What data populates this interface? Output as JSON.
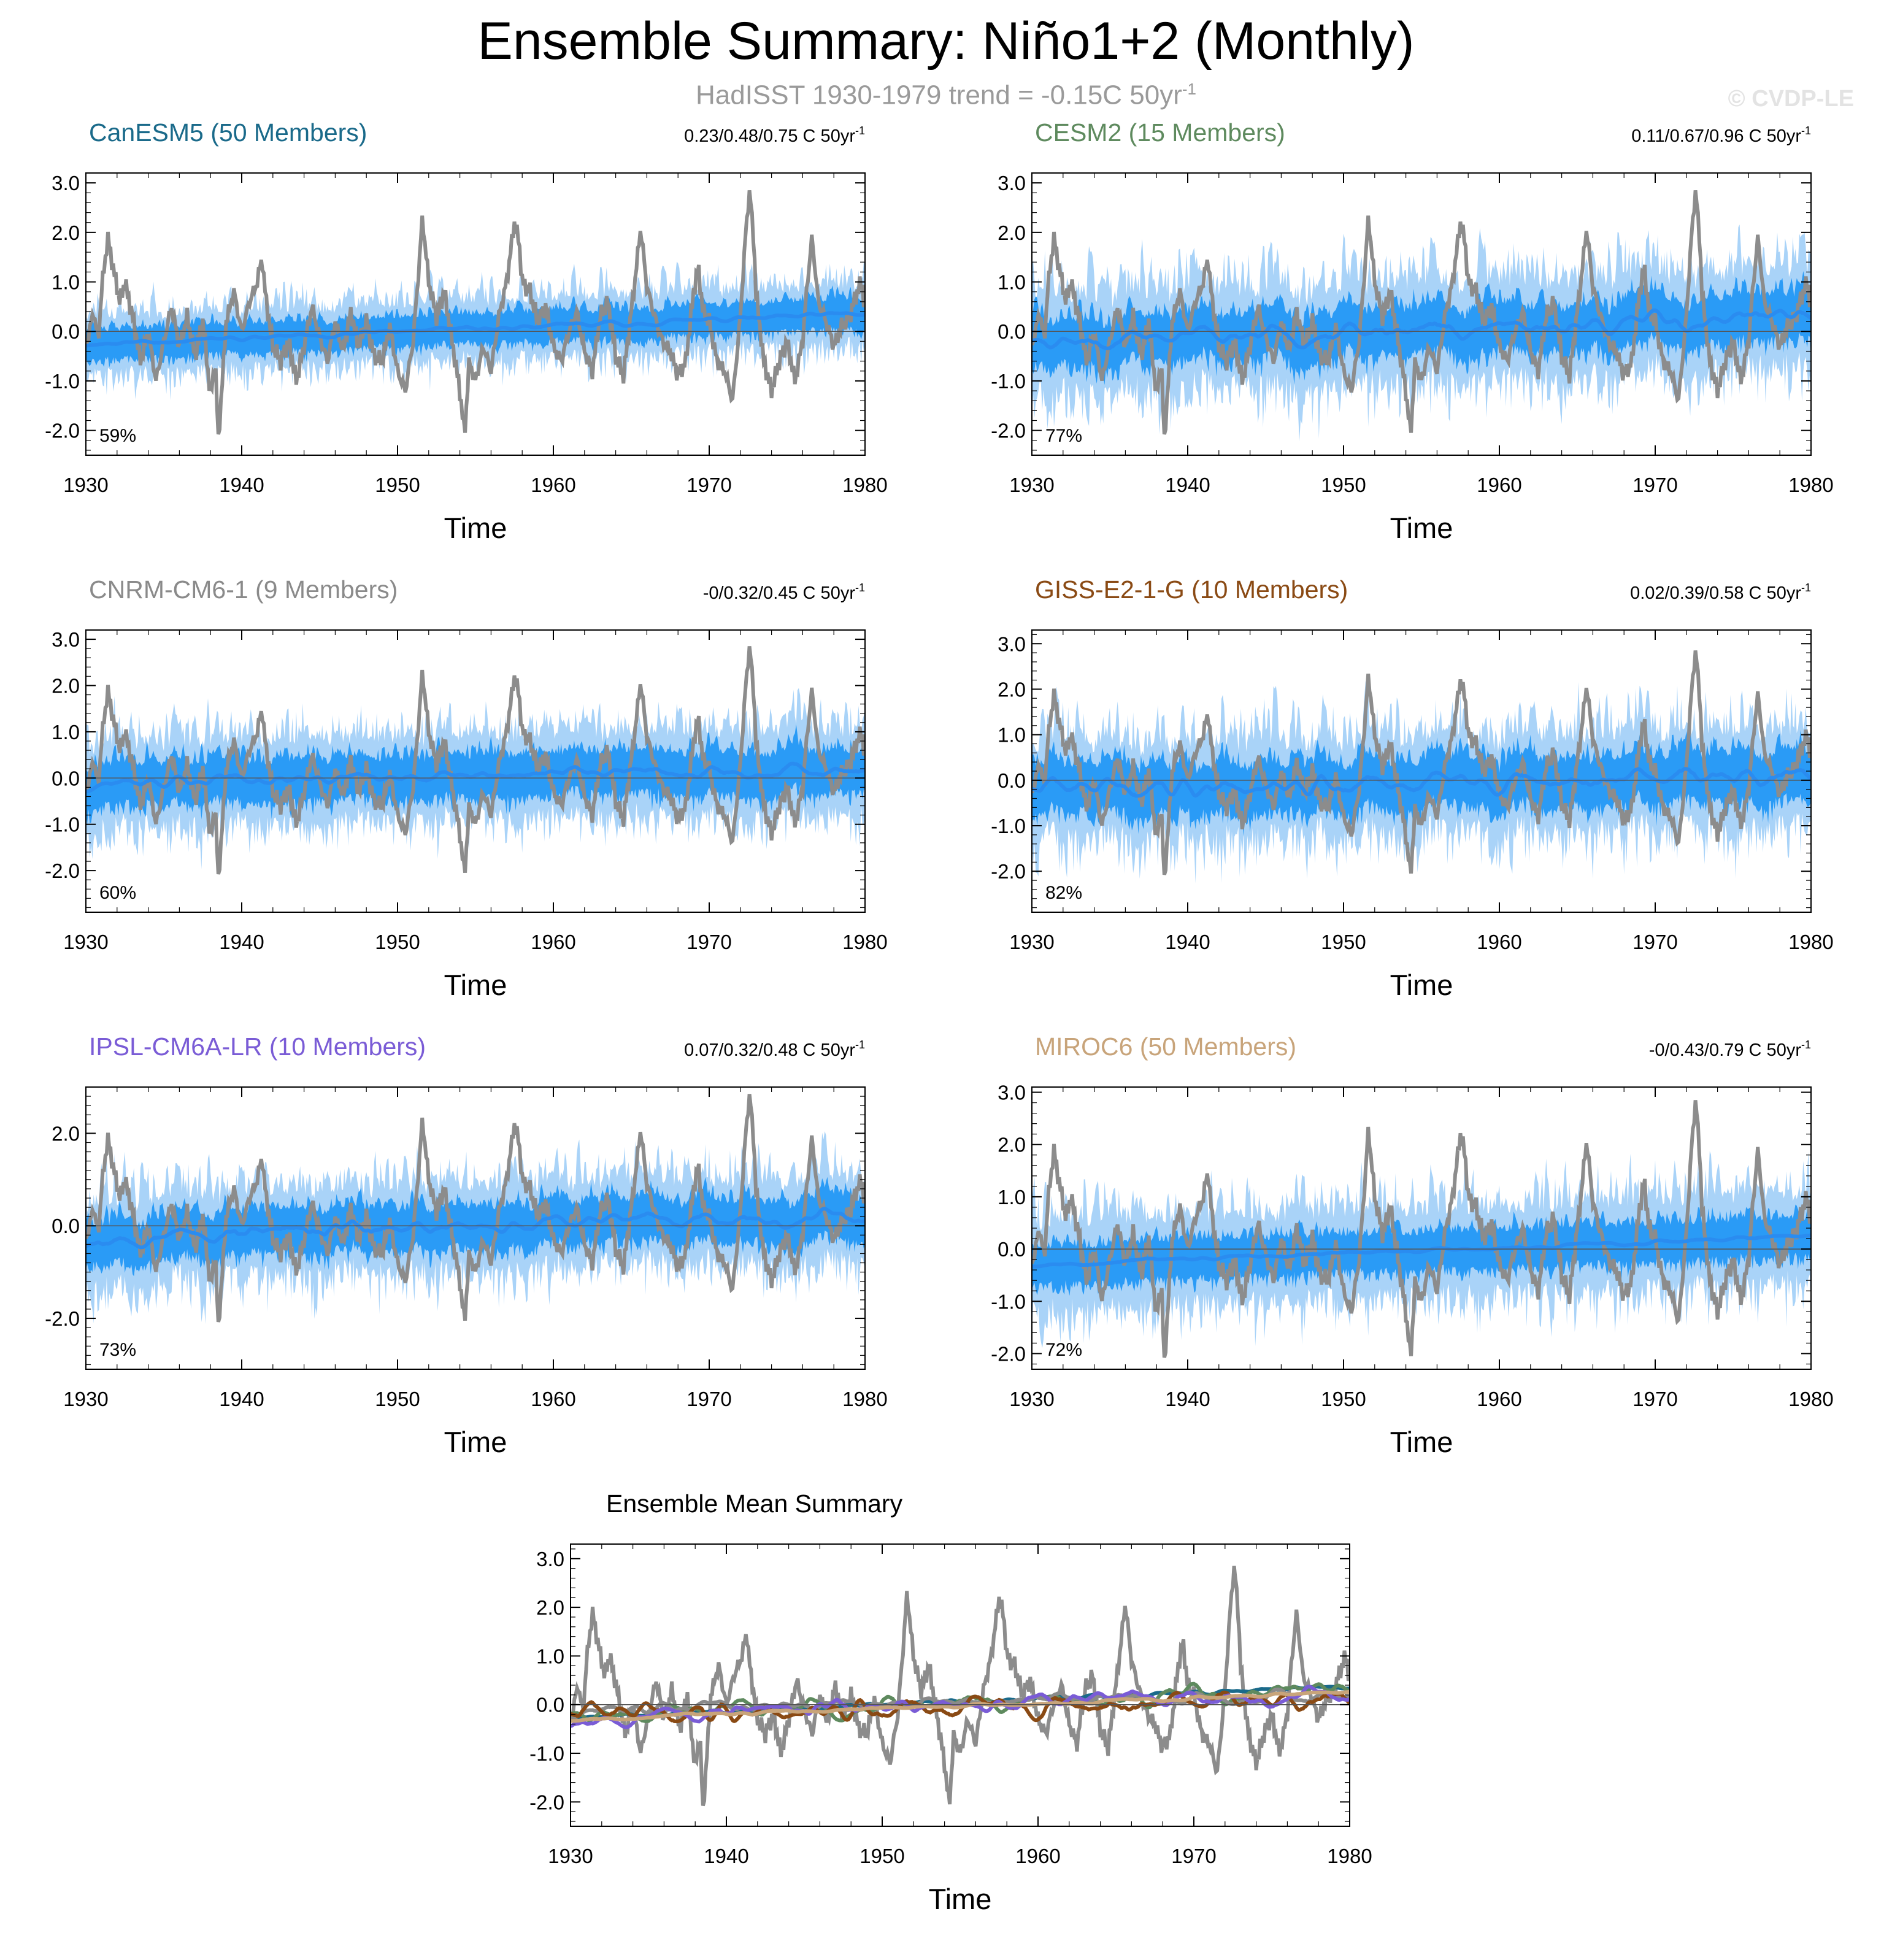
{
  "title": "Ensemble Summary: Niño1+2 (Monthly)",
  "subtitle": {
    "text": "HadISST 1930-1979 trend = -0.15C 50yr",
    "sup": "-1"
  },
  "watermark": "© CVDP-LE",
  "colors": {
    "obs": "#8c8c8c",
    "band_outer": "#a9d3f8",
    "band_inner": "#2a9bf6",
    "mean": "#2a8cf0"
  },
  "chart_data": [
    {
      "type": "line",
      "id": "canesm5",
      "title": "CanESM5 (50 Members)",
      "title_color": "#1a6a8a",
      "trend_label": "0.23/0.48/0.75 C 50yr",
      "trend_sup": "-1",
      "percent": "59%",
      "xlabel": "Time",
      "xlim": [
        1930,
        1980
      ],
      "ylim": [
        -2.5,
        3.2
      ],
      "yticks": [
        3.0,
        2.0,
        1.0,
        0.0,
        -1.0,
        -2.0
      ],
      "ytick_labels": [
        "3.0",
        "2.0",
        "1.0",
        "0.0",
        "-1.0",
        "-2.0"
      ],
      "xticks": [
        1930,
        1940,
        1950,
        1960,
        1970,
        1980
      ],
      "mean_start": -0.25,
      "mean_end": 0.35,
      "mean_var": 0.07,
      "band_inner": 0.45,
      "band_outer": 0.85,
      "seed": 11
    },
    {
      "type": "line",
      "id": "cesm2",
      "title": "CESM2 (15 Members)",
      "title_color": "#5e8a5e",
      "trend_label": "0.11/0.67/0.96 C 50yr",
      "trend_sup": "-1",
      "percent": "77%",
      "xlabel": "Time",
      "xlim": [
        1930,
        1980
      ],
      "ylim": [
        -2.5,
        3.2
      ],
      "yticks": [
        3.0,
        2.0,
        1.0,
        0.0,
        -1.0,
        -2.0
      ],
      "ytick_labels": [
        "3.0",
        "2.0",
        "1.0",
        "0.0",
        "-1.0",
        "-2.0"
      ],
      "xticks": [
        1930,
        1940,
        1950,
        1960,
        1970,
        1980
      ],
      "mean_start": -0.2,
      "mean_end": 0.3,
      "mean_var": 0.3,
      "band_inner": 0.7,
      "band_outer": 1.4,
      "seed": 23
    },
    {
      "type": "line",
      "id": "cnrm",
      "title": "CNRM-CM6-1 (9 Members)",
      "title_color": "#8a8a8a",
      "trend_label": "-0/0.32/0.45 C 50yr",
      "trend_sup": "-1",
      "percent": "60%",
      "xlabel": "Time",
      "xlim": [
        1930,
        1980
      ],
      "ylim": [
        -2.9,
        3.2
      ],
      "yticks": [
        3.0,
        2.0,
        1.0,
        0.0,
        -1.0,
        -2.0
      ],
      "ytick_labels": [
        "3.0",
        "2.0",
        "1.0",
        "0.0",
        "-1.0",
        "-2.0"
      ],
      "xticks": [
        1930,
        1940,
        1950,
        1960,
        1970,
        1980
      ],
      "mean_start": -0.1,
      "mean_end": 0.2,
      "mean_var": 0.2,
      "band_inner": 0.7,
      "band_outer": 1.3,
      "seed": 37
    },
    {
      "type": "line",
      "id": "giss",
      "title": "GISS-E2-1-G (10 Members)",
      "title_color": "#8a4a14",
      "trend_label": "0.02/0.39/0.58 C 50yr",
      "trend_sup": "-1",
      "percent": "82%",
      "xlabel": "Time",
      "xlim": [
        1930,
        1980
      ],
      "ylim": [
        -2.9,
        3.3
      ],
      "yticks": [
        3.0,
        2.0,
        1.0,
        0.0,
        -1.0,
        -2.0
      ],
      "ytick_labels": [
        "3.0",
        "2.0",
        "1.0",
        "0.0",
        "-1.0",
        "-2.0"
      ],
      "xticks": [
        1930,
        1940,
        1950,
        1960,
        1970,
        1980
      ],
      "mean_start": -0.2,
      "mean_end": 0.1,
      "mean_var": 0.3,
      "band_inner": 0.8,
      "band_outer": 1.5,
      "seed": 41
    },
    {
      "type": "line",
      "id": "ipsl",
      "title": "IPSL-CM6A-LR (10 Members)",
      "title_color": "#7a5cd6",
      "trend_label": "0.07/0.32/0.48 C 50yr",
      "trend_sup": "-1",
      "percent": "73%",
      "xlabel": "Time",
      "xlim": [
        1930,
        1980
      ],
      "ylim": [
        -3.1,
        3.0
      ],
      "yticks": [
        2.0,
        0.0,
        -2.0
      ],
      "ytick_labels": [
        "2.0",
        "0.0",
        "-2.0"
      ],
      "xticks": [
        1930,
        1940,
        1950,
        1960,
        1970,
        1980
      ],
      "mean_start": -0.25,
      "mean_end": 0.25,
      "mean_var": 0.25,
      "band_inner": 0.7,
      "band_outer": 1.3,
      "seed": 53
    },
    {
      "type": "line",
      "id": "miroc6",
      "title": "MIROC6 (50 Members)",
      "title_color": "#c8a47a",
      "trend_label": "-0/0.43/0.79 C 50yr",
      "trend_sup": "-1",
      "percent": "72%",
      "xlabel": "Time",
      "xlim": [
        1930,
        1980
      ],
      "ylim": [
        -2.3,
        3.1
      ],
      "yticks": [
        3.0,
        2.0,
        1.0,
        0.0,
        -1.0,
        -2.0
      ],
      "ytick_labels": [
        "3.0",
        "2.0",
        "1.0",
        "0.0",
        "-1.0",
        "-2.0"
      ],
      "xticks": [
        1930,
        1940,
        1950,
        1960,
        1970,
        1980
      ],
      "mean_start": -0.3,
      "mean_end": 0.25,
      "mean_var": 0.05,
      "band_inner": 0.55,
      "band_outer": 1.2,
      "seed": 67
    },
    {
      "type": "line",
      "id": "ensmean",
      "title": "Ensemble Mean Summary",
      "title_color": "#000000",
      "xlabel": "Time",
      "xlim": [
        1930,
        1980
      ],
      "ylim": [
        -2.5,
        3.3
      ],
      "yticks": [
        3.0,
        2.0,
        1.0,
        0.0,
        -1.0,
        -2.0
      ],
      "ytick_labels": [
        "3.0",
        "2.0",
        "1.0",
        "0.0",
        "-1.0",
        "-2.0"
      ],
      "xticks": [
        1930,
        1940,
        1950,
        1960,
        1970,
        1980
      ],
      "series": [
        {
          "name": "CanESM5",
          "color": "#1a6a8a",
          "mean_start": -0.25,
          "mean_end": 0.35,
          "mean_var": 0.07,
          "seed": 11
        },
        {
          "name": "CESM2",
          "color": "#5e8a5e",
          "mean_start": -0.2,
          "mean_end": 0.3,
          "mean_var": 0.3,
          "seed": 23
        },
        {
          "name": "CNRM-CM6-1",
          "color": "#8a8a8a",
          "mean_start": -0.1,
          "mean_end": 0.2,
          "mean_var": 0.2,
          "seed": 37
        },
        {
          "name": "GISS-E2-1-G",
          "color": "#8a4a14",
          "mean_start": -0.2,
          "mean_end": 0.1,
          "mean_var": 0.3,
          "seed": 41
        },
        {
          "name": "IPSL-CM6A-LR",
          "color": "#7a5cd6",
          "mean_start": -0.25,
          "mean_end": 0.25,
          "mean_var": 0.25,
          "seed": 53
        },
        {
          "name": "MIROC6",
          "color": "#c8a47a",
          "mean_start": -0.3,
          "mean_end": 0.25,
          "mean_var": 0.05,
          "seed": 67
        }
      ]
    }
  ],
  "observations": {
    "name": "HadISST",
    "anchors": [
      [
        1930,
        -0.3
      ],
      [
        1930.5,
        0.4
      ],
      [
        1930.8,
        -0.2
      ],
      [
        1931,
        0.8
      ],
      [
        1931.4,
        1.9
      ],
      [
        1931.8,
        1.2
      ],
      [
        1932.2,
        0.6
      ],
      [
        1932.5,
        1.0
      ],
      [
        1933,
        0.3
      ],
      [
        1933.5,
        -0.6
      ],
      [
        1934,
        0.0
      ],
      [
        1934.5,
        -1.0
      ],
      [
        1935,
        -0.2
      ],
      [
        1935.5,
        0.5
      ],
      [
        1936,
        -0.3
      ],
      [
        1936.5,
        0.3
      ],
      [
        1937,
        -0.5
      ],
      [
        1937.5,
        0.2
      ],
      [
        1938,
        -1.3
      ],
      [
        1938.3,
        -0.6
      ],
      [
        1938.5,
        -2.2
      ],
      [
        1938.8,
        -0.8
      ],
      [
        1939,
        0.2
      ],
      [
        1939.5,
        0.8
      ],
      [
        1940,
        0.0
      ],
      [
        1940.5,
        0.6
      ],
      [
        1941,
        1.0
      ],
      [
        1941.3,
        1.5
      ],
      [
        1941.5,
        0.8
      ],
      [
        1942,
        -0.3
      ],
      [
        1942.5,
        -0.6
      ],
      [
        1943,
        -0.2
      ],
      [
        1943.5,
        -1.0
      ],
      [
        1944,
        -0.3
      ],
      [
        1944.5,
        0.5
      ],
      [
        1945,
        -0.1
      ],
      [
        1945.5,
        -0.6
      ],
      [
        1946,
        0.2
      ],
      [
        1946.5,
        -0.4
      ],
      [
        1947,
        0.4
      ],
      [
        1947.5,
        -0.3
      ],
      [
        1948,
        0.2
      ],
      [
        1948.5,
        -0.5
      ],
      [
        1949,
        -0.6
      ],
      [
        1949.5,
        0.1
      ],
      [
        1950,
        -0.8
      ],
      [
        1950.5,
        -1.2
      ],
      [
        1951,
        -0.2
      ],
      [
        1951.3,
        1.0
      ],
      [
        1951.6,
        2.3
      ],
      [
        1952,
        1.0
      ],
      [
        1952.5,
        0.3
      ],
      [
        1953,
        0.8
      ],
      [
        1953.5,
        -0.2
      ],
      [
        1954,
        -1.2
      ],
      [
        1954.3,
        -2.1
      ],
      [
        1954.6,
        -0.6
      ],
      [
        1955,
        -1.0
      ],
      [
        1955.5,
        -0.3
      ],
      [
        1956,
        -0.8
      ],
      [
        1956.5,
        0.3
      ],
      [
        1957,
        1.0
      ],
      [
        1957.5,
        2.2
      ],
      [
        1957.8,
        1.8
      ],
      [
        1958,
        1.0
      ],
      [
        1958.5,
        0.8
      ],
      [
        1959,
        0.2
      ],
      [
        1959.5,
        0.5
      ],
      [
        1960,
        -0.3
      ],
      [
        1960.5,
        -0.6
      ],
      [
        1961,
        0.0
      ],
      [
        1961.5,
        0.4
      ],
      [
        1962,
        -0.4
      ],
      [
        1962.5,
        -0.8
      ],
      [
        1963,
        0.3
      ],
      [
        1963.5,
        0.6
      ],
      [
        1964,
        -0.5
      ],
      [
        1964.5,
        -0.9
      ],
      [
        1965,
        0.4
      ],
      [
        1965.3,
        1.2
      ],
      [
        1965.6,
        2.1
      ],
      [
        1966,
        0.9
      ],
      [
        1966.5,
        0.3
      ],
      [
        1967,
        -0.2
      ],
      [
        1967.5,
        -0.4
      ],
      [
        1968,
        -0.9
      ],
      [
        1968.5,
        -0.6
      ],
      [
        1969,
        0.8
      ],
      [
        1969.3,
        1.3
      ],
      [
        1969.6,
        0.4
      ],
      [
        1970,
        0.2
      ],
      [
        1970.5,
        -0.6
      ],
      [
        1971,
        -0.8
      ],
      [
        1971.5,
        -1.4
      ],
      [
        1972,
        0.3
      ],
      [
        1972.3,
        1.8
      ],
      [
        1972.6,
        2.9
      ],
      [
        1972.9,
        1.6
      ],
      [
        1973,
        0.8
      ],
      [
        1973.5,
        -0.6
      ],
      [
        1974,
        -1.2
      ],
      [
        1974.5,
        -0.6
      ],
      [
        1975,
        -0.2
      ],
      [
        1975.5,
        -1.0
      ],
      [
        1976,
        -0.2
      ],
      [
        1976.3,
        1.0
      ],
      [
        1976.6,
        1.9
      ],
      [
        1977,
        0.6
      ],
      [
        1977.5,
        0.2
      ],
      [
        1978,
        -0.3
      ],
      [
        1978.5,
        0.1
      ],
      [
        1979,
        0.3
      ],
      [
        1979.5,
        0.8
      ],
      [
        1979.8,
        1.0
      ],
      [
        1980,
        0.4
      ]
    ]
  }
}
